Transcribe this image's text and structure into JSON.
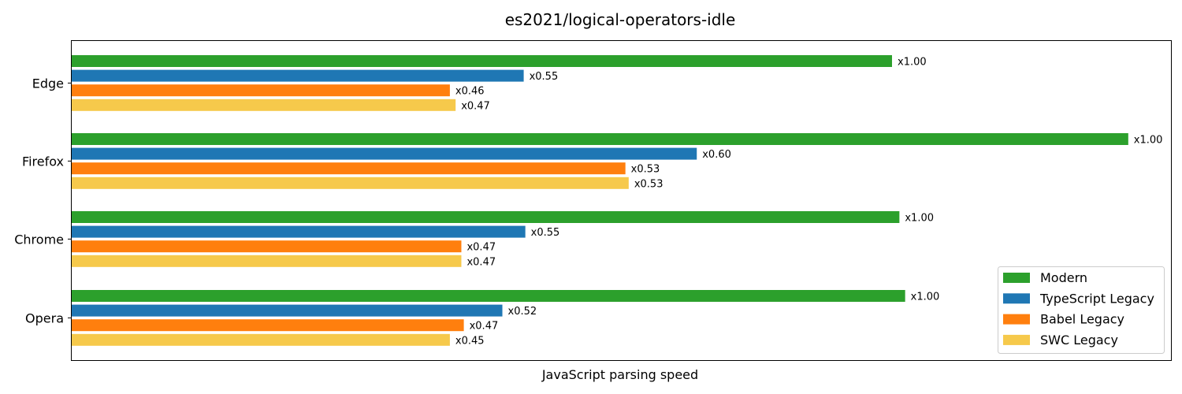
{
  "chart_data": {
    "type": "bar",
    "orientation": "horizontal",
    "title": "es2021/logical-operators-idle",
    "xlabel": "JavaScript parsing speed",
    "ylabel": "",
    "categories": [
      "Edge",
      "Firefox",
      "Chrome",
      "Opera"
    ],
    "series": [
      {
        "name": "Modern",
        "color": "#2ca02c",
        "values": [
          1.0,
          1.0,
          1.0,
          1.0
        ],
        "labels": [
          "x1.00",
          "x1.00",
          "x1.00",
          "x1.00"
        ],
        "length": [
          1.0,
          1.288,
          1.009,
          1.016
        ]
      },
      {
        "name": "TypeScript Legacy",
        "color": "#1f77b4",
        "values": [
          0.55,
          0.6,
          0.55,
          0.52
        ],
        "labels": [
          "x0.55",
          "x0.60",
          "x0.55",
          "x0.52"
        ],
        "length": [
          0.551,
          0.762,
          0.553,
          0.525
        ]
      },
      {
        "name": "Babel Legacy",
        "color": "#ff7f0e",
        "values": [
          0.46,
          0.53,
          0.47,
          0.47
        ],
        "labels": [
          "x0.46",
          "x0.53",
          "x0.47",
          "x0.47"
        ],
        "length": [
          0.461,
          0.675,
          0.475,
          0.478
        ]
      },
      {
        "name": "SWC Legacy",
        "color": "#f6c94b",
        "values": [
          0.47,
          0.53,
          0.47,
          0.45
        ],
        "labels": [
          "x0.47",
          "x0.53",
          "x0.47",
          "x0.45"
        ],
        "length": [
          0.468,
          0.679,
          0.475,
          0.461
        ]
      }
    ],
    "legend": {
      "placement": "bottom-right"
    },
    "grid": false,
    "xticks": false
  }
}
